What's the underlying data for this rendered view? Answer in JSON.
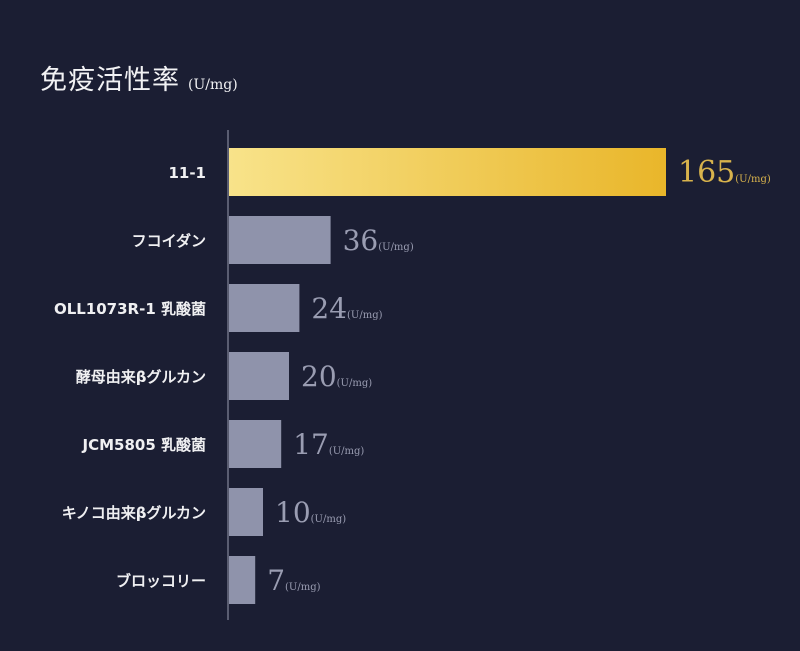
{
  "chart_data": {
    "type": "bar",
    "orientation": "horizontal",
    "title": "免疫活性率",
    "title_unit": "(U/mg)",
    "unit_suffix": "(U/mg)",
    "categories": [
      "11-1",
      "フコイダン",
      "OLL1073R-1 乳酸菌",
      "酵母由来βグルカン",
      "JCM5805 乳酸菌",
      "キノコ由来βグルカン",
      "ブロッコリー"
    ],
    "values": [
      165,
      36,
      24,
      20,
      17,
      10,
      7
    ],
    "highlight_index": 0,
    "xlim": [
      0,
      165
    ],
    "grid": false,
    "colors": {
      "background": "#1b1e33",
      "highlight_start": "#f8e38a",
      "highlight_end": "#e9b62a",
      "highlight_text": "#d8b34c",
      "bar": "#8f93ab",
      "value_text": "#9a9db2",
      "label_text": "#f0f0f2",
      "axis": "#6f7286"
    }
  }
}
